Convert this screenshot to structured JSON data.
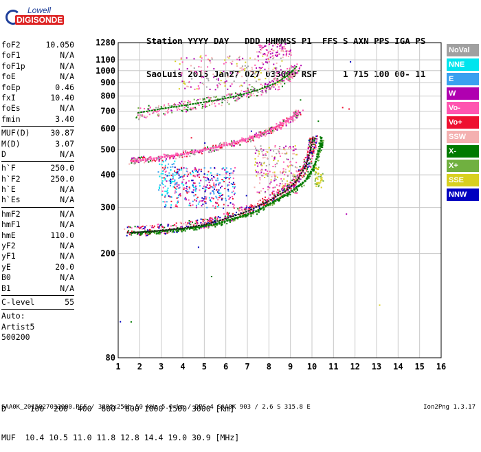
{
  "logo": {
    "line1": "Lowell",
    "line2": "DIGISONDE"
  },
  "header": {
    "line1": "Station YYYY DAY   DDD HHMMSS P1  FFS S AXN PPS IGA PS",
    "line2": "SaoLuis 2015 Jan27 027 033000 RSF     1 715 100 00- 11"
  },
  "params": [
    {
      "type": "row",
      "name": "foF2",
      "value": "10.050"
    },
    {
      "type": "row",
      "name": "foF1",
      "value": "N/A"
    },
    {
      "type": "row",
      "name": "foF1p",
      "value": "N/A"
    },
    {
      "type": "row",
      "name": "foE",
      "value": "N/A"
    },
    {
      "type": "row",
      "name": "foEp",
      "value": "0.46"
    },
    {
      "type": "row",
      "name": "fxI",
      "value": "10.40"
    },
    {
      "type": "row",
      "name": "foEs",
      "value": "N/A"
    },
    {
      "type": "row",
      "name": "fmin",
      "value": "3.40"
    },
    {
      "type": "sep"
    },
    {
      "type": "row",
      "name": "MUF(D)",
      "value": "30.87"
    },
    {
      "type": "row",
      "name": "M(D)",
      "value": "3.07"
    },
    {
      "type": "row",
      "name": "D",
      "value": "N/A"
    },
    {
      "type": "sep"
    },
    {
      "type": "row",
      "name": "h`F",
      "value": "250.0"
    },
    {
      "type": "row",
      "name": "h`F2",
      "value": "250.0"
    },
    {
      "type": "row",
      "name": "h`E",
      "value": "N/A"
    },
    {
      "type": "row",
      "name": "h`Es",
      "value": "N/A"
    },
    {
      "type": "sep"
    },
    {
      "type": "row",
      "name": "hmF2",
      "value": "N/A"
    },
    {
      "type": "row",
      "name": "hmF1",
      "value": "N/A"
    },
    {
      "type": "row",
      "name": "hmE",
      "value": "110.0"
    },
    {
      "type": "row",
      "name": "yF2",
      "value": "N/A"
    },
    {
      "type": "row",
      "name": "yF1",
      "value": "N/A"
    },
    {
      "type": "row",
      "name": "yE",
      "value": "20.0"
    },
    {
      "type": "row",
      "name": "B0",
      "value": "N/A"
    },
    {
      "type": "row",
      "name": "B1",
      "value": "N/A"
    },
    {
      "type": "sep"
    },
    {
      "type": "row",
      "name": "C-level",
      "value": "55"
    },
    {
      "type": "sep"
    },
    {
      "type": "text",
      "text": "Auto:"
    },
    {
      "type": "text",
      "text": "Artist5"
    },
    {
      "type": "text",
      "text": "500200"
    }
  ],
  "legend": [
    {
      "label": "NoVal",
      "color": "#a0a0a0"
    },
    {
      "label": "NNE",
      "color": "#00e5ee"
    },
    {
      "label": "E",
      "color": "#3aa0f0"
    },
    {
      "label": "W",
      "color": "#b000b0"
    },
    {
      "label": "Vo-",
      "color": "#ff55b0"
    },
    {
      "label": "Vo+",
      "color": "#ee1030"
    },
    {
      "label": "SSW",
      "color": "#f4b0b0"
    },
    {
      "label": "X-",
      "color": "#007a00"
    },
    {
      "label": "X+",
      "color": "#70b040"
    },
    {
      "label": "SSE",
      "color": "#d8d020"
    },
    {
      "label": "NNW",
      "color": "#0000c0"
    }
  ],
  "muf_table": {
    "line1": "D     100  200  400  600  800 1000 1500 3000 [km]",
    "line2": "MUF  10.4 10.5 11.0 11.8 12.8 14.4 19.0 30.9 [MHz]"
  },
  "footer": "SAA0K_2015027033000.RSF / 300fx256h 50 kHz 5.0 km / DPS-4 SAA0K 903 / 2.6 S 315.8 E",
  "version": "Ion2Png 1.3.17",
  "chart_data": {
    "type": "scatter",
    "xlim": [
      1,
      16
    ],
    "ylim": [
      80,
      1280
    ],
    "y_scale": "log",
    "xticks": [
      1,
      2,
      3,
      4,
      5,
      6,
      7,
      8,
      9,
      10,
      11,
      12,
      13,
      14,
      15,
      16
    ],
    "yticks": [
      80,
      200,
      300,
      400,
      500,
      600,
      700,
      800,
      900,
      1000,
      1100,
      1280
    ],
    "grid": true,
    "traces": [
      {
        "name": "O-trace F2 1st hop",
        "x": [
          1.4,
          2.5,
          4,
          5,
          6,
          7,
          8,
          8.8,
          9.3,
          9.7,
          9.95,
          10.05
        ],
        "y": [
          240,
          243,
          250,
          258,
          272,
          290,
          318,
          348,
          380,
          430,
          500,
          560
        ]
      },
      {
        "name": "X-trace F2 1st hop",
        "x": [
          1.6,
          2.8,
          4.3,
          5.4,
          6.4,
          7.4,
          8.3,
          9.1,
          9.7,
          10.1,
          10.35,
          10.45
        ],
        "y": [
          240,
          243,
          250,
          258,
          272,
          290,
          318,
          348,
          380,
          430,
          500,
          560
        ]
      },
      {
        "name": "F2 2nd hop",
        "x": [
          1.6,
          2.5,
          4,
          5.2,
          6.3,
          7.2,
          8,
          8.6,
          9.1,
          9.4
        ],
        "y": [
          450,
          460,
          480,
          502,
          528,
          555,
          590,
          625,
          665,
          700
        ]
      },
      {
        "name": "F2 3rd hop",
        "x": [
          1.9,
          3,
          4.2,
          5.4,
          6.5,
          7.5,
          8.3,
          8.9,
          9.3
        ],
        "y": [
          690,
          715,
          740,
          768,
          800,
          845,
          895,
          960,
          1040
        ]
      }
    ]
  }
}
